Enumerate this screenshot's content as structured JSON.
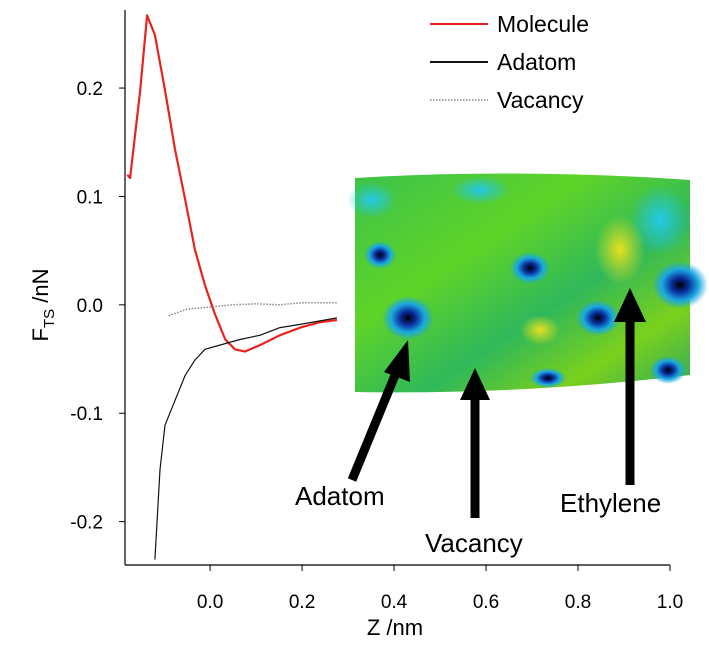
{
  "chart_data": {
    "type": "line",
    "xlabel": "Z /nm",
    "ylabel": "F",
    "ylabel_sub": "TS",
    "ylabel_unit": "/nN",
    "xlim": [
      -0.185,
      1.0
    ],
    "ylim": [
      -0.24,
      0.272
    ],
    "xticks": [
      {
        "value": 0,
        "label": "0.0"
      },
      0.2,
      0.4,
      0.6,
      0.8,
      {
        "value": 1,
        "label": "1.0"
      }
    ],
    "yticks": [
      0.2,
      0.1,
      {
        "value": 0,
        "label": "0.0"
      },
      -0.1,
      -0.2
    ],
    "legend": "top-right",
    "series": [
      {
        "name": "Molecule",
        "color": "#e8231e",
        "style": "solid",
        "x": [
          -0.18,
          -0.174,
          -0.152,
          -0.137,
          -0.12,
          -0.098,
          -0.076,
          -0.054,
          -0.033,
          -0.011,
          0.011,
          0.033,
          0.054,
          0.076,
          0.109,
          0.152,
          0.196,
          0.239,
          0.276
        ],
        "values": [
          0.12,
          0.117,
          0.198,
          0.267,
          0.249,
          0.198,
          0.143,
          0.097,
          0.051,
          0.018,
          -0.009,
          -0.032,
          -0.041,
          -0.043,
          -0.037,
          -0.028,
          -0.021,
          -0.016,
          -0.014
        ]
      },
      {
        "name": "Adatom",
        "color": "#111111",
        "style": "solid",
        "x": [
          -0.12,
          -0.109,
          -0.098,
          -0.076,
          -0.054,
          -0.033,
          -0.011,
          0.022,
          0.065,
          0.109,
          0.152,
          0.196,
          0.276
        ],
        "values": [
          -0.235,
          -0.152,
          -0.111,
          -0.088,
          -0.065,
          -0.051,
          -0.041,
          -0.037,
          -0.032,
          -0.028,
          -0.021,
          -0.018,
          -0.012
        ]
      },
      {
        "name": "Vacancy",
        "color": "#888888",
        "style": "dotted",
        "x": [
          -0.09,
          -0.05,
          0.0,
          0.05,
          0.1,
          0.15,
          0.2,
          0.276
        ],
        "values": [
          -0.01,
          -0.004,
          -0.002,
          0.0,
          0.001,
          0.0,
          0.002,
          0.002
        ]
      }
    ],
    "annotations": [
      "Adatom",
      "Vacancy",
      "Ethylene"
    ]
  }
}
